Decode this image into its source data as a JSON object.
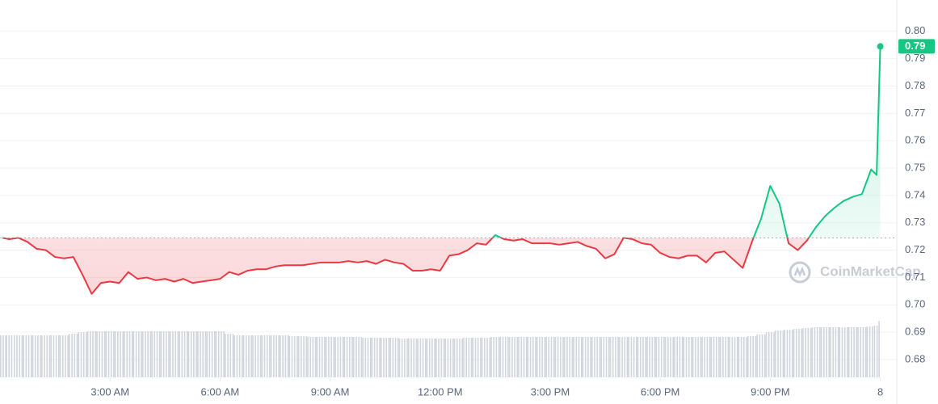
{
  "chart_data": {
    "type": "line",
    "watermark": "CoinMarketCap",
    "x": [
      0.07,
      0.25,
      0.5,
      0.75,
      1,
      1.25,
      1.5,
      1.75,
      2,
      2.25,
      2.5,
      2.75,
      3,
      3.25,
      3.5,
      3.75,
      4,
      4.25,
      4.5,
      4.75,
      5,
      5.25,
      5.5,
      5.75,
      6,
      6.25,
      6.5,
      6.75,
      7,
      7.25,
      7.5,
      7.75,
      8,
      8.25,
      8.5,
      8.75,
      9,
      9.25,
      9.5,
      9.75,
      10,
      10.25,
      10.5,
      10.75,
      11,
      11.25,
      11.5,
      11.75,
      12,
      12.25,
      12.5,
      12.75,
      13,
      13.25,
      13.5,
      13.75,
      14,
      14.25,
      14.5,
      14.75,
      15,
      15.25,
      15.5,
      15.75,
      16,
      16.25,
      16.5,
      16.75,
      17,
      17.25,
      17.5,
      17.75,
      18,
      18.25,
      18.5,
      18.75,
      19,
      19.25,
      19.5,
      19.75,
      20,
      20.25,
      20.5,
      20.75,
      21,
      21.25,
      21.5,
      21.75,
      22,
      22.25,
      22.5,
      22.75,
      23,
      23.25,
      23.5,
      23.75,
      23.9,
      24
    ],
    "series": [
      {
        "name": "Price",
        "color_up": "#16c784",
        "color_down": "#ea3943",
        "values": [
          0.7245,
          0.724,
          0.7245,
          0.723,
          0.7205,
          0.72,
          0.7175,
          0.717,
          0.7175,
          0.711,
          0.704,
          0.708,
          0.7085,
          0.708,
          0.712,
          0.7095,
          0.71,
          0.709,
          0.7095,
          0.7085,
          0.7095,
          0.708,
          0.7085,
          0.709,
          0.7095,
          0.712,
          0.711,
          0.7125,
          0.713,
          0.713,
          0.714,
          0.7145,
          0.7145,
          0.7145,
          0.715,
          0.7155,
          0.7155,
          0.7155,
          0.716,
          0.7155,
          0.716,
          0.715,
          0.7165,
          0.7155,
          0.715,
          0.7125,
          0.7125,
          0.713,
          0.7125,
          0.718,
          0.7185,
          0.72,
          0.7225,
          0.722,
          0.7255,
          0.724,
          0.7235,
          0.724,
          0.7225,
          0.7225,
          0.7225,
          0.722,
          0.7225,
          0.723,
          0.7215,
          0.7205,
          0.717,
          0.7185,
          0.7245,
          0.724,
          0.7225,
          0.722,
          0.719,
          0.7175,
          0.717,
          0.718,
          0.718,
          0.7155,
          0.719,
          0.7195,
          0.7165,
          0.7135,
          0.723,
          0.7315,
          0.7435,
          0.737,
          0.7225,
          0.72,
          0.7235,
          0.7285,
          0.7325,
          0.7355,
          0.738,
          0.7395,
          0.7405,
          0.7495,
          0.7475,
          0.7945
        ]
      },
      {
        "name": "Volume",
        "color": "#d1d5dc",
        "values": [
          52,
          52,
          52,
          52,
          52,
          52,
          52,
          52,
          54,
          56,
          57,
          57,
          57,
          57,
          57,
          57,
          57,
          57,
          57,
          57,
          57,
          57,
          57,
          57,
          57,
          54,
          52,
          52,
          52,
          52,
          52,
          52,
          51,
          51,
          50,
          50,
          50,
          50,
          50,
          50,
          49,
          49,
          49,
          49,
          48,
          48,
          48,
          48,
          48,
          48,
          48,
          49,
          49,
          49,
          50,
          50,
          50,
          50,
          50,
          50,
          50,
          50,
          50,
          50,
          50,
          50,
          50,
          50,
          50,
          50,
          50,
          50,
          50,
          50,
          50,
          50,
          50,
          50,
          50,
          50,
          50,
          50,
          51,
          53,
          56,
          58,
          59,
          60,
          61,
          62,
          62,
          62,
          62,
          62,
          62,
          63,
          64,
          70
        ]
      }
    ],
    "reference_line": 0.7245,
    "last_label": {
      "value": 0.7945,
      "label": "0.79"
    },
    "xlim": [
      0.0,
      24.45
    ],
    "xticks": [
      {
        "value": 3,
        "label": "3:00 AM"
      },
      {
        "value": 6,
        "label": "6:00 AM"
      },
      {
        "value": 9,
        "label": "9:00 AM"
      },
      {
        "value": 12,
        "label": "12:00 PM"
      },
      {
        "value": 15,
        "label": "3:00 PM"
      },
      {
        "value": 18,
        "label": "6:00 PM"
      },
      {
        "value": 21,
        "label": "9:00 PM"
      },
      {
        "value": 24,
        "label": "8"
      }
    ],
    "ylim": [
      0.6735,
      0.8085
    ],
    "yticks": [
      0.68,
      0.69,
      {
        "value": 0.7,
        "label": "0.70"
      },
      0.71,
      0.72,
      0.73,
      0.74,
      0.75,
      0.76,
      0.77,
      0.78,
      0.79,
      {
        "value": 0.8,
        "label": "0.80"
      }
    ],
    "grid": true
  }
}
